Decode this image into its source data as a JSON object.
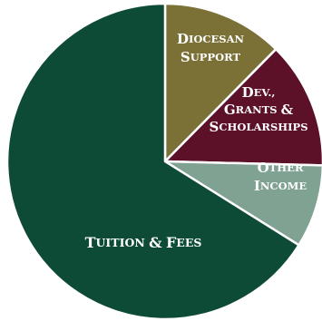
{
  "chart_data": {
    "type": "pie",
    "title": "",
    "start_angle_deg": 0,
    "direction": "clockwise",
    "slices": [
      {
        "label": "Diocesan Support",
        "lines": [
          "Diocesan",
          "Support"
        ],
        "value": 12.4,
        "color": "#7b7136"
      },
      {
        "label": "Dev., Grants & Scholarships",
        "lines": [
          "Dev.,",
          "Grants &",
          "Scholarships"
        ],
        "value": 13.0,
        "color": "#5c1129"
      },
      {
        "label": "Other Income",
        "lines": [
          "Other",
          "Income"
        ],
        "value": 8.5,
        "color": "#7fa293"
      },
      {
        "label": "Tuition & Fees",
        "lines": [
          "Tuition & Fees"
        ],
        "value": 66.1,
        "color": "#0d4b37"
      }
    ],
    "slice_border_color": "#ffffff"
  }
}
